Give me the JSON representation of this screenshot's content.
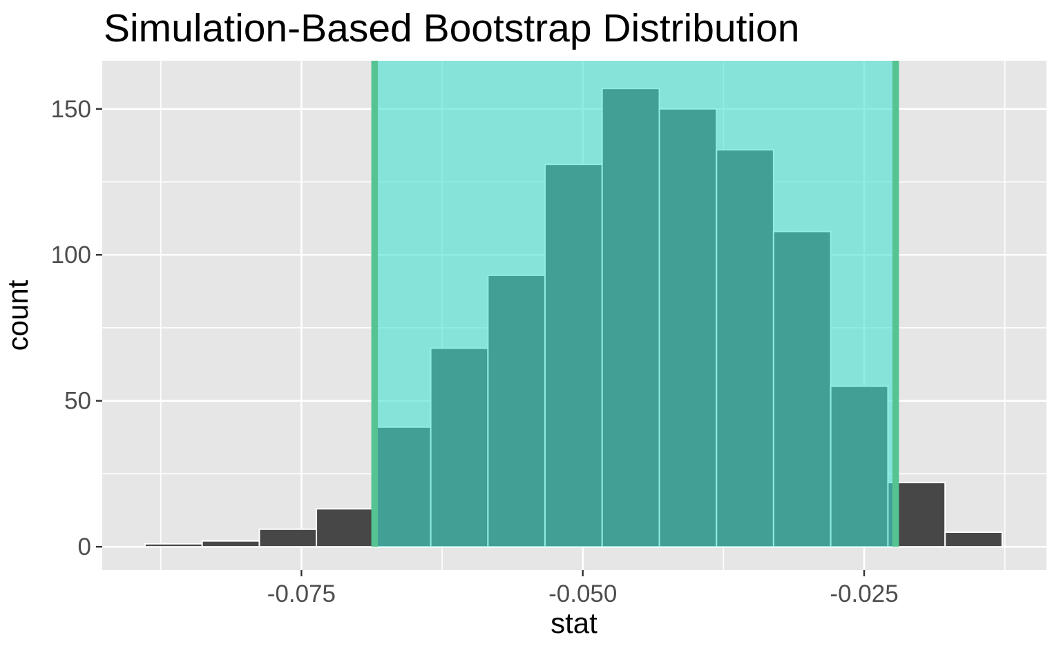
{
  "chart_data": {
    "type": "bar",
    "subtype": "histogram",
    "title": "Simulation-Based Bootstrap Distribution",
    "xlabel": "stat",
    "ylabel": "count",
    "bin_width": 0.005078,
    "bin_edges": [
      -0.0889,
      -0.08382,
      -0.07874,
      -0.07367,
      -0.06859,
      -0.06351,
      -0.05843,
      -0.05336,
      -0.04828,
      -0.0432,
      -0.03812,
      -0.03305,
      -0.02797,
      -0.02289,
      -0.01781,
      -0.01274
    ],
    "counts": [
      1,
      2,
      6,
      13,
      41,
      68,
      93,
      131,
      157,
      150,
      136,
      108,
      55,
      22,
      5
    ],
    "confidence_interval": {
      "lower": -0.0685,
      "upper": -0.0222
    },
    "x_ticks": [
      -0.075,
      -0.05,
      -0.025
    ],
    "x_tick_labels": [
      "-0.075",
      "-0.050",
      "-0.025"
    ],
    "x_minor_gridlines": [
      -0.0875,
      -0.0625,
      -0.0375,
      -0.0125
    ],
    "y_ticks": [
      0,
      50,
      100,
      150
    ],
    "y_tick_labels": [
      "0",
      "50",
      "100",
      "150"
    ],
    "y_minor_gridlines": [
      25,
      75,
      125
    ],
    "xlim": [
      -0.0927,
      -0.0088
    ],
    "ylim": [
      -8,
      166.5
    ],
    "grid": true,
    "legend": false,
    "colors": {
      "background": "#FFFFFF",
      "panel": "#E6E6E6",
      "gridline": "#FFFFFF",
      "bar_fill": "#474747",
      "bar_border": "#FFFFFF",
      "shade_fill": "#40E0D0",
      "shade_alpha": 0.58,
      "ci_line": "#55C392",
      "tick_mark": "#333333",
      "tick_label": "#4D4D4D",
      "text": "#000000"
    }
  }
}
